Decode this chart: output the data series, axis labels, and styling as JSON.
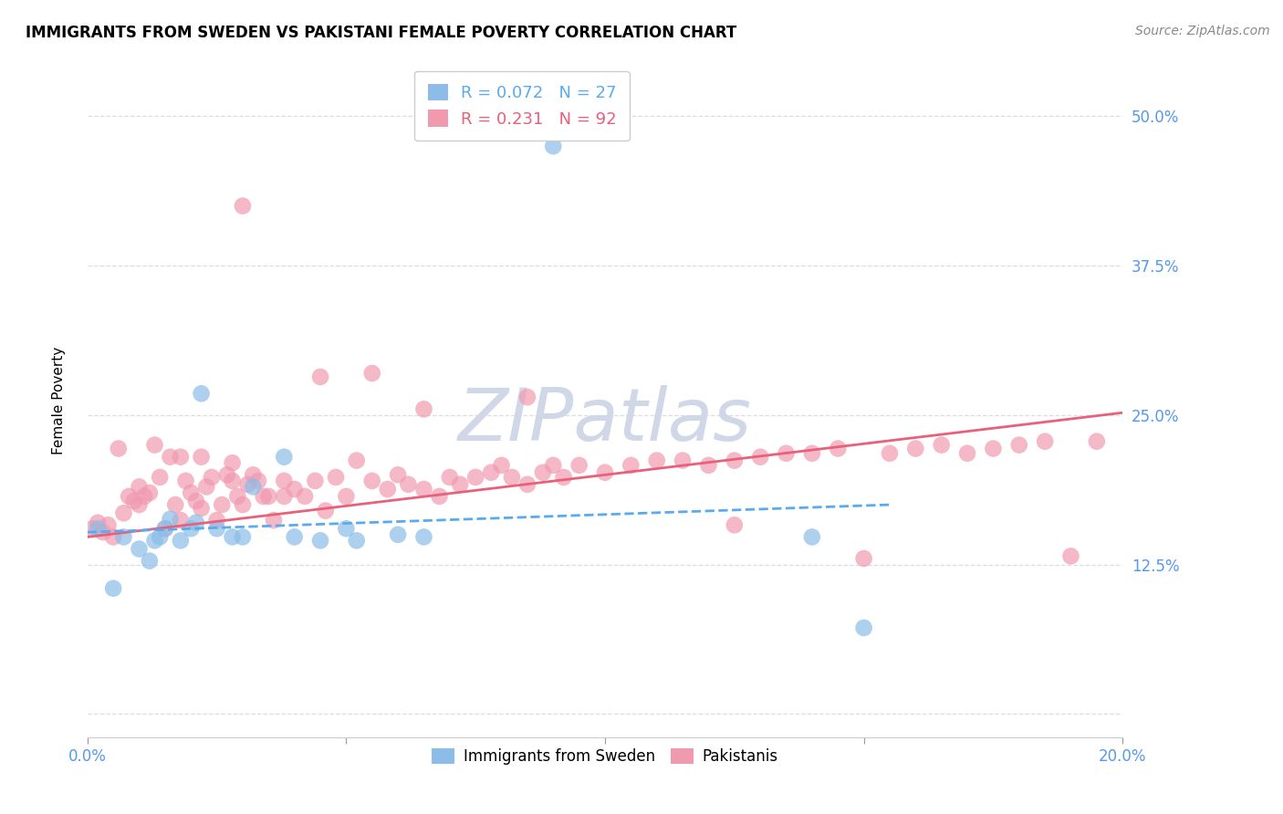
{
  "title": "IMMIGRANTS FROM SWEDEN VS PAKISTANI FEMALE POVERTY CORRELATION CHART",
  "source": "Source: ZipAtlas.com",
  "ylabel": "Female Poverty",
  "ytick_values": [
    0.0,
    0.125,
    0.25,
    0.375,
    0.5
  ],
  "ytick_labels": [
    "",
    "12.5%",
    "25.0%",
    "37.5%",
    "50.0%"
  ],
  "xlim": [
    0.0,
    0.2
  ],
  "ylim": [
    -0.02,
    0.545
  ],
  "r1": "0.072",
  "n1": "27",
  "r2": "0.231",
  "n2": "92",
  "color_sweden": "#8bbde8",
  "color_pakistan": "#f09ab0",
  "color_blue": "#5aaaee",
  "color_pink": "#e8607a",
  "color_tick": "#5599ee",
  "watermark_color": "#d0d8e8",
  "grid_color": "#dddddd",
  "background_color": "#ffffff",
  "sweden_x": [
    0.002,
    0.005,
    0.007,
    0.01,
    0.012,
    0.013,
    0.014,
    0.015,
    0.016,
    0.018,
    0.02,
    0.021,
    0.022,
    0.025,
    0.028,
    0.03,
    0.032,
    0.038,
    0.04,
    0.045,
    0.05,
    0.052,
    0.06,
    0.065,
    0.09,
    0.14,
    0.15
  ],
  "sweden_y": [
    0.155,
    0.105,
    0.148,
    0.138,
    0.128,
    0.145,
    0.148,
    0.155,
    0.163,
    0.145,
    0.155,
    0.16,
    0.268,
    0.155,
    0.148,
    0.148,
    0.19,
    0.215,
    0.148,
    0.145,
    0.155,
    0.145,
    0.15,
    0.148,
    0.475,
    0.148,
    0.072
  ],
  "pakistan_x": [
    0.001,
    0.002,
    0.003,
    0.004,
    0.005,
    0.006,
    0.007,
    0.008,
    0.009,
    0.01,
    0.01,
    0.011,
    0.012,
    0.013,
    0.014,
    0.015,
    0.016,
    0.017,
    0.018,
    0.018,
    0.019,
    0.02,
    0.021,
    0.022,
    0.022,
    0.023,
    0.024,
    0.025,
    0.026,
    0.027,
    0.028,
    0.028,
    0.029,
    0.03,
    0.031,
    0.032,
    0.033,
    0.034,
    0.035,
    0.036,
    0.038,
    0.038,
    0.04,
    0.042,
    0.044,
    0.046,
    0.048,
    0.05,
    0.052,
    0.055,
    0.058,
    0.06,
    0.062,
    0.065,
    0.068,
    0.07,
    0.072,
    0.075,
    0.078,
    0.08,
    0.082,
    0.085,
    0.088,
    0.09,
    0.092,
    0.095,
    0.1,
    0.105,
    0.11,
    0.115,
    0.12,
    0.125,
    0.13,
    0.135,
    0.14,
    0.145,
    0.15,
    0.155,
    0.16,
    0.165,
    0.17,
    0.175,
    0.18,
    0.185,
    0.19,
    0.195,
    0.03,
    0.045,
    0.055,
    0.065,
    0.085,
    0.125
  ],
  "pakistan_y": [
    0.155,
    0.16,
    0.152,
    0.158,
    0.148,
    0.222,
    0.168,
    0.182,
    0.178,
    0.175,
    0.19,
    0.182,
    0.185,
    0.225,
    0.198,
    0.155,
    0.215,
    0.175,
    0.162,
    0.215,
    0.195,
    0.185,
    0.178,
    0.172,
    0.215,
    0.19,
    0.198,
    0.162,
    0.175,
    0.2,
    0.195,
    0.21,
    0.182,
    0.175,
    0.192,
    0.2,
    0.195,
    0.182,
    0.182,
    0.162,
    0.195,
    0.182,
    0.188,
    0.182,
    0.195,
    0.17,
    0.198,
    0.182,
    0.212,
    0.195,
    0.188,
    0.2,
    0.192,
    0.188,
    0.182,
    0.198,
    0.192,
    0.198,
    0.202,
    0.208,
    0.198,
    0.192,
    0.202,
    0.208,
    0.198,
    0.208,
    0.202,
    0.208,
    0.212,
    0.212,
    0.208,
    0.212,
    0.215,
    0.218,
    0.218,
    0.222,
    0.13,
    0.218,
    0.222,
    0.225,
    0.218,
    0.222,
    0.225,
    0.228,
    0.132,
    0.228,
    0.425,
    0.282,
    0.285,
    0.255,
    0.265,
    0.158
  ],
  "sweden_line_x": [
    0.0,
    0.155
  ],
  "sweden_line_y": [
    0.152,
    0.175
  ],
  "pakistan_line_x": [
    0.0,
    0.2
  ],
  "pakistan_line_y": [
    0.148,
    0.252
  ],
  "title_fontsize": 12,
  "source_fontsize": 10,
  "tick_fontsize": 12,
  "ylabel_fontsize": 11
}
